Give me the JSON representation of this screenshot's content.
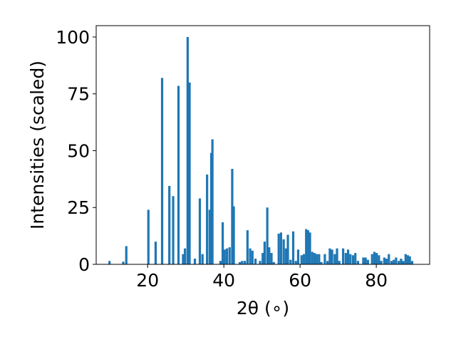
{
  "chart_data": {
    "type": "bar",
    "title": "",
    "xlabel": "2θ (∘)",
    "ylabel": "Intensities (scaled)",
    "xlim": [
      6.5,
      94
    ],
    "ylim": [
      0,
      105
    ],
    "xticks": [
      20,
      40,
      60,
      80
    ],
    "yticks": [
      0,
      25,
      50,
      75,
      100
    ],
    "grid": false,
    "bar_color": "#1f77b4",
    "bar_width": 0.6,
    "x": [
      10.0,
      13.6,
      14.4,
      20.2,
      22.1,
      23.8,
      25.7,
      26.7,
      28.1,
      29.3,
      29.8,
      30.5,
      31.0,
      32.4,
      33.7,
      34.4,
      35.6,
      36.3,
      36.7,
      37.0,
      39.1,
      39.7,
      40.2,
      40.8,
      41.5,
      42.2,
      42.6,
      44.2,
      44.8,
      45.5,
      46.2,
      46.9,
      47.5,
      48.3,
      49.5,
      50.2,
      50.7,
      51.4,
      51.9,
      52.5,
      53.1,
      54.4,
      55.0,
      55.7,
      56.3,
      56.8,
      57.5,
      58.2,
      58.9,
      59.5,
      60.4,
      61.0,
      61.6,
      62.1,
      62.6,
      63.2,
      63.8,
      64.4,
      65.0,
      65.6,
      66.5,
      67.2,
      67.8,
      68.4,
      69.1,
      69.7,
      70.3,
      71.3,
      72.0,
      72.6,
      73.2,
      73.9,
      74.5,
      75.2,
      76.6,
      77.2,
      77.8,
      78.9,
      79.5,
      80.1,
      80.7,
      81.3,
      82.1,
      82.7,
      83.3,
      84.0,
      84.6,
      85.2,
      85.9,
      86.5,
      87.1,
      87.7,
      88.3,
      88.8,
      89.4
    ],
    "values": [
      1.5,
      1.2,
      8.0,
      24.0,
      10.0,
      82.0,
      34.5,
      30.0,
      78.5,
      4.5,
      7.0,
      100.0,
      80.0,
      2.5,
      29.0,
      4.5,
      39.5,
      24.0,
      49.0,
      55.0,
      1.5,
      18.5,
      6.5,
      7.0,
      7.5,
      42.0,
      25.5,
      1.0,
      1.5,
      1.5,
      15.0,
      7.0,
      6.0,
      2.5,
      1.5,
      5.0,
      10.0,
      25.0,
      7.5,
      5.0,
      1.0,
      13.5,
      14.0,
      11.0,
      7.0,
      13.0,
      2.0,
      14.5,
      1.5,
      6.5,
      4.0,
      4.5,
      15.5,
      15.0,
      14.0,
      5.5,
      5.0,
      4.5,
      4.5,
      1.0,
      4.5,
      1.5,
      7.0,
      6.5,
      4.5,
      7.0,
      1.5,
      7.0,
      5.0,
      6.5,
      4.5,
      4.0,
      5.0,
      1.5,
      3.0,
      3.0,
      2.0,
      4.5,
      5.5,
      5.0,
      4.0,
      1.5,
      3.0,
      2.5,
      4.5,
      1.5,
      2.0,
      3.0,
      1.5,
      2.5,
      1.5,
      4.5,
      4.0,
      3.5,
      1.5
    ]
  }
}
